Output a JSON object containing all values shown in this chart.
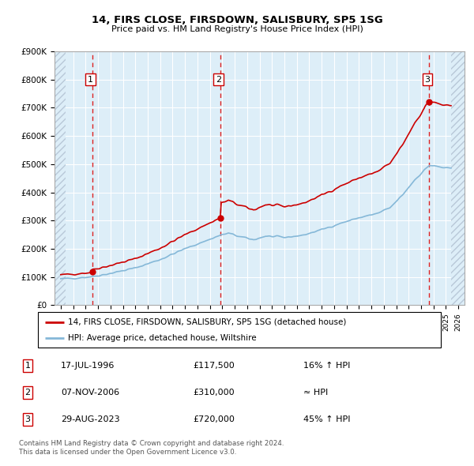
{
  "title": "14, FIRS CLOSE, FIRSDOWN, SALISBURY, SP5 1SG",
  "subtitle": "Price paid vs. HM Land Registry's House Price Index (HPI)",
  "ylim": [
    0,
    900000
  ],
  "xlim_start": 1993.5,
  "xlim_end": 2026.5,
  "yticks": [
    0,
    100000,
    200000,
    300000,
    400000,
    500000,
    600000,
    700000,
    800000,
    900000
  ],
  "ytick_labels": [
    "£0",
    "£100K",
    "£200K",
    "£300K",
    "£400K",
    "£500K",
    "£600K",
    "£700K",
    "£800K",
    "£900K"
  ],
  "xtick_years": [
    1994,
    1995,
    1996,
    1997,
    1998,
    1999,
    2000,
    2001,
    2002,
    2003,
    2004,
    2005,
    2006,
    2007,
    2008,
    2009,
    2010,
    2011,
    2012,
    2013,
    2014,
    2015,
    2016,
    2017,
    2018,
    2019,
    2020,
    2021,
    2022,
    2023,
    2024,
    2025,
    2026
  ],
  "sale_dates": [
    1996.54,
    2006.85,
    2023.66
  ],
  "sale_prices": [
    117500,
    310000,
    720000
  ],
  "sale_labels": [
    "1",
    "2",
    "3"
  ],
  "vline_color": "#dd2222",
  "sale_marker_color": "#cc0000",
  "hpi_line_color": "#85b8d8",
  "price_line_color": "#cc0000",
  "legend_label_price": "14, FIRS CLOSE, FIRSDOWN, SALISBURY, SP5 1SG (detached house)",
  "legend_label_hpi": "HPI: Average price, detached house, Wiltshire",
  "table_rows": [
    {
      "num": "1",
      "date": "17-JUL-1996",
      "price": "£117,500",
      "change": "16% ↑ HPI"
    },
    {
      "num": "2",
      "date": "07-NOV-2006",
      "price": "£310,000",
      "change": "≈ HPI"
    },
    {
      "num": "3",
      "date": "29-AUG-2023",
      "price": "£720,000",
      "change": "45% ↑ HPI"
    }
  ],
  "footnote1": "Contains HM Land Registry data © Crown copyright and database right 2024.",
  "footnote2": "This data is licensed under the Open Government Licence v3.0.",
  "background_color": "#ffffff",
  "plot_bg_color": "#ddeef8",
  "hatch_color": "#b8c8d8",
  "grid_color": "#ffffff"
}
